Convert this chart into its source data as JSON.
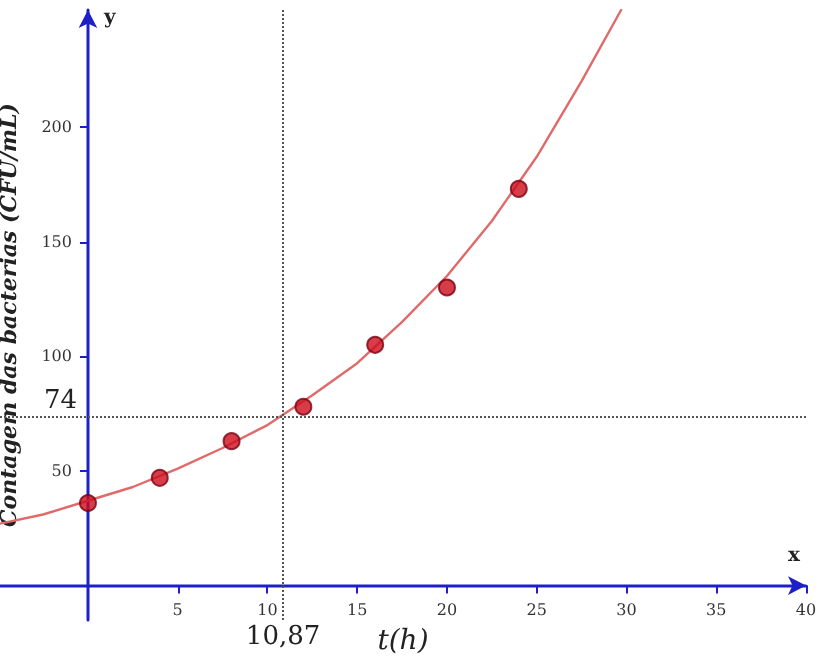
{
  "chart_data": {
    "type": "scatter",
    "xlabel": "t(h)",
    "ylabel": "Contagem das bacterias (CFU/mL)",
    "annotations": [
      "x",
      "y"
    ],
    "xlim": [
      -4.9,
      40
    ],
    "xticks": [
      5,
      10,
      15,
      20,
      25,
      30,
      35,
      40
    ],
    "ylim": [
      -15,
      251
    ],
    "yticks": [
      50,
      100,
      150,
      200
    ],
    "grid": false,
    "series": [
      {
        "color": "#cc0c1c",
        "marker": "circle",
        "x": [
          0,
          4,
          8,
          12,
          16,
          20,
          24
        ],
        "values": [
          36,
          47,
          63,
          78,
          105,
          130,
          173
        ]
      },
      {
        "type": "line",
        "color": "#e06a6a",
        "marker": "none",
        "line_style": "solid",
        "x": [
          -4.9,
          -2.5,
          0,
          2.5,
          5,
          7.5,
          10,
          12.5,
          15,
          17.5,
          20,
          22.5,
          25,
          27.5,
          29.7
        ],
        "values": [
          27,
          31,
          37,
          43,
          51,
          60,
          70,
          83,
          97,
          115,
          135,
          159,
          187,
          220,
          251
        ]
      }
    ],
    "ref_lines": [
      {
        "axis": "x",
        "value": 10.87,
        "label": "10,87",
        "color": "#555555",
        "line_style": "dotted"
      },
      {
        "axis": "y",
        "value": 74,
        "label": "74",
        "color": "#555555",
        "line_style": "dotted"
      }
    ]
  }
}
